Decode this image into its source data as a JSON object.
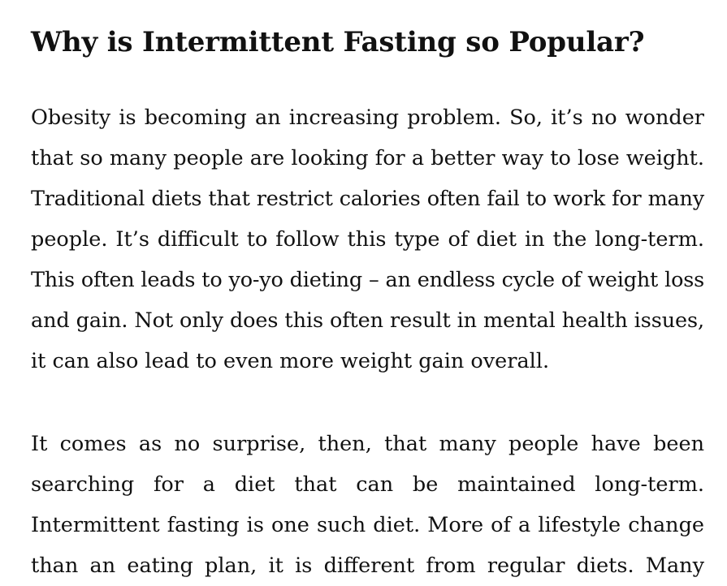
{
  "article": {
    "heading": "Why is Intermittent Fasting so Popular?",
    "paragraph_1": [
      "Obesity is becoming an increasing problem. So, it’s no wonder",
      "that so many people are looking for a better way to lose weight.",
      "Traditional diets that restrict calories often fail to work for many",
      "people. It’s difficult to follow this type of diet in the long-term.",
      "This often leads to yo-yo dieting – an endless cycle of weight loss",
      "and gain. Not only does this often result in mental health issues,",
      "it can also lead to even more weight gain overall."
    ],
    "paragraph_2": [
      "It comes as no surprise, then, that many people have been",
      "searching for a diet that can be maintained long-term.",
      "Intermittent fasting is one such diet. More of a lifestyle change",
      "than an eating plan, it is different from regular diets. Many"
    ]
  }
}
